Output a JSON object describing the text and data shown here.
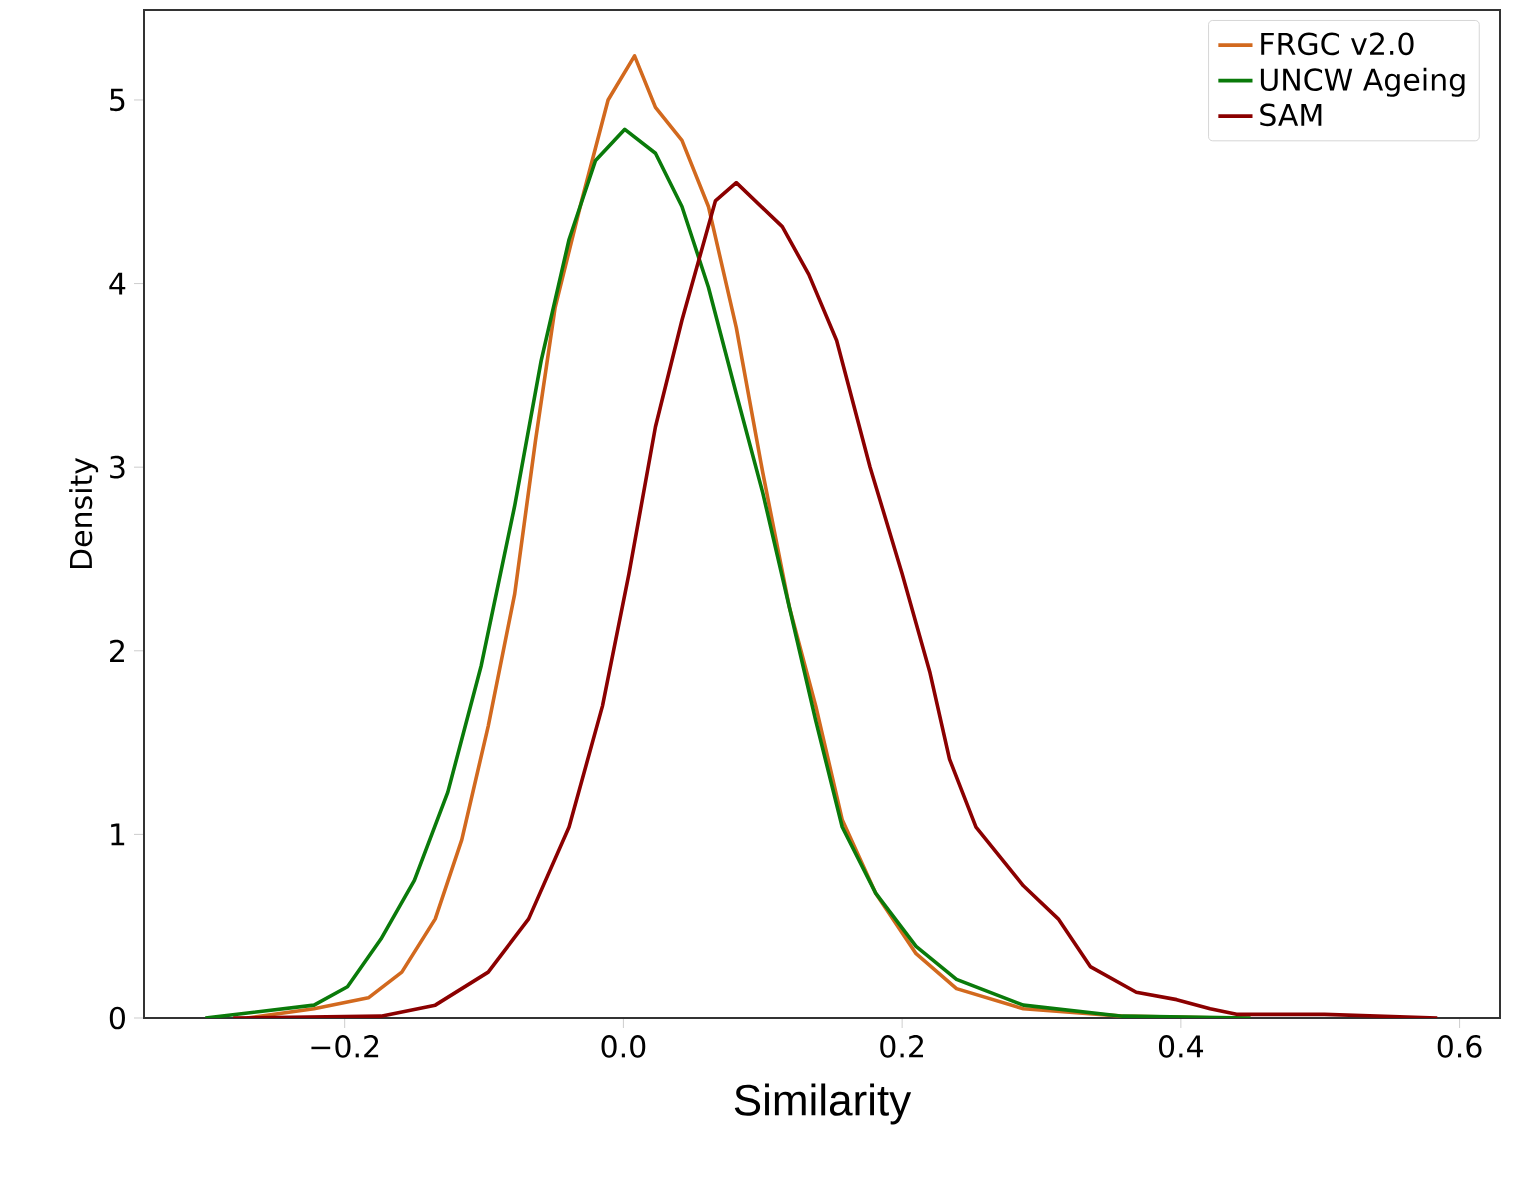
{
  "chart_data": {
    "type": "line",
    "xlabel": "Similarity",
    "ylabel": "Density",
    "xlim": [
      -0.344,
      0.629
    ],
    "ylim": [
      0,
      5.49
    ],
    "xticks": [
      {
        "value": -0.2,
        "label": "−0.2"
      },
      {
        "value": 0.0,
        "label": "0.0"
      },
      {
        "value": 0.2,
        "label": "0.2"
      },
      {
        "value": 0.4,
        "label": "0.4"
      },
      {
        "value": 0.6,
        "label": "0.6"
      }
    ],
    "yticks": [
      0,
      1,
      2,
      3,
      4,
      5
    ],
    "grid": false,
    "legend": "top right",
    "line_style": "solid",
    "marker": "none",
    "series": [
      {
        "name": "FRGC v2.0",
        "color": "#d2691e",
        "x": [
          -0.27,
          -0.222,
          -0.183,
          -0.159,
          -0.135,
          -0.116,
          -0.097,
          -0.078,
          -0.063,
          -0.049,
          -0.03,
          -0.011,
          0.008,
          0.023,
          0.042,
          0.061,
          0.081,
          0.1,
          0.119,
          0.138,
          0.157,
          0.181,
          0.21,
          0.239,
          0.287,
          0.358,
          0.43
        ],
        "values": [
          0,
          0.05,
          0.11,
          0.25,
          0.54,
          0.97,
          1.59,
          2.31,
          3.15,
          3.87,
          4.45,
          5.0,
          5.24,
          4.96,
          4.78,
          4.42,
          3.76,
          2.97,
          2.24,
          1.7,
          1.08,
          0.68,
          0.35,
          0.16,
          0.05,
          0.01,
          0
        ]
      },
      {
        "name": "UNCW Ageing",
        "color": "#0a7a0a",
        "x": [
          -0.3,
          -0.222,
          -0.198,
          -0.174,
          -0.15,
          -0.126,
          -0.102,
          -0.078,
          -0.059,
          -0.039,
          -0.02,
          0.001,
          0.023,
          0.042,
          0.061,
          0.081,
          0.1,
          0.119,
          0.138,
          0.157,
          0.181,
          0.21,
          0.239,
          0.287,
          0.358,
          0.45
        ],
        "values": [
          0,
          0.07,
          0.17,
          0.43,
          0.75,
          1.23,
          1.92,
          2.79,
          3.58,
          4.24,
          4.67,
          4.84,
          4.71,
          4.42,
          3.98,
          3.4,
          2.86,
          2.24,
          1.62,
          1.04,
          0.68,
          0.39,
          0.21,
          0.07,
          0.01,
          0
        ]
      },
      {
        "name": "SAM",
        "color": "#8b0000",
        "x": [
          -0.28,
          -0.174,
          -0.135,
          -0.097,
          -0.068,
          -0.039,
          -0.015,
          0.004,
          0.023,
          0.042,
          0.066,
          0.081,
          0.114,
          0.133,
          0.153,
          0.177,
          0.2,
          0.22,
          0.234,
          0.253,
          0.287,
          0.312,
          0.335,
          0.368,
          0.397,
          0.421,
          0.44,
          0.503,
          0.584
        ],
        "values": [
          0,
          0.01,
          0.07,
          0.25,
          0.54,
          1.04,
          1.7,
          2.42,
          3.22,
          3.8,
          4.45,
          4.55,
          4.31,
          4.05,
          3.69,
          3.0,
          2.42,
          1.88,
          1.41,
          1.04,
          0.72,
          0.54,
          0.28,
          0.14,
          0.1,
          0.05,
          0.02,
          0.02,
          0
        ]
      }
    ]
  }
}
